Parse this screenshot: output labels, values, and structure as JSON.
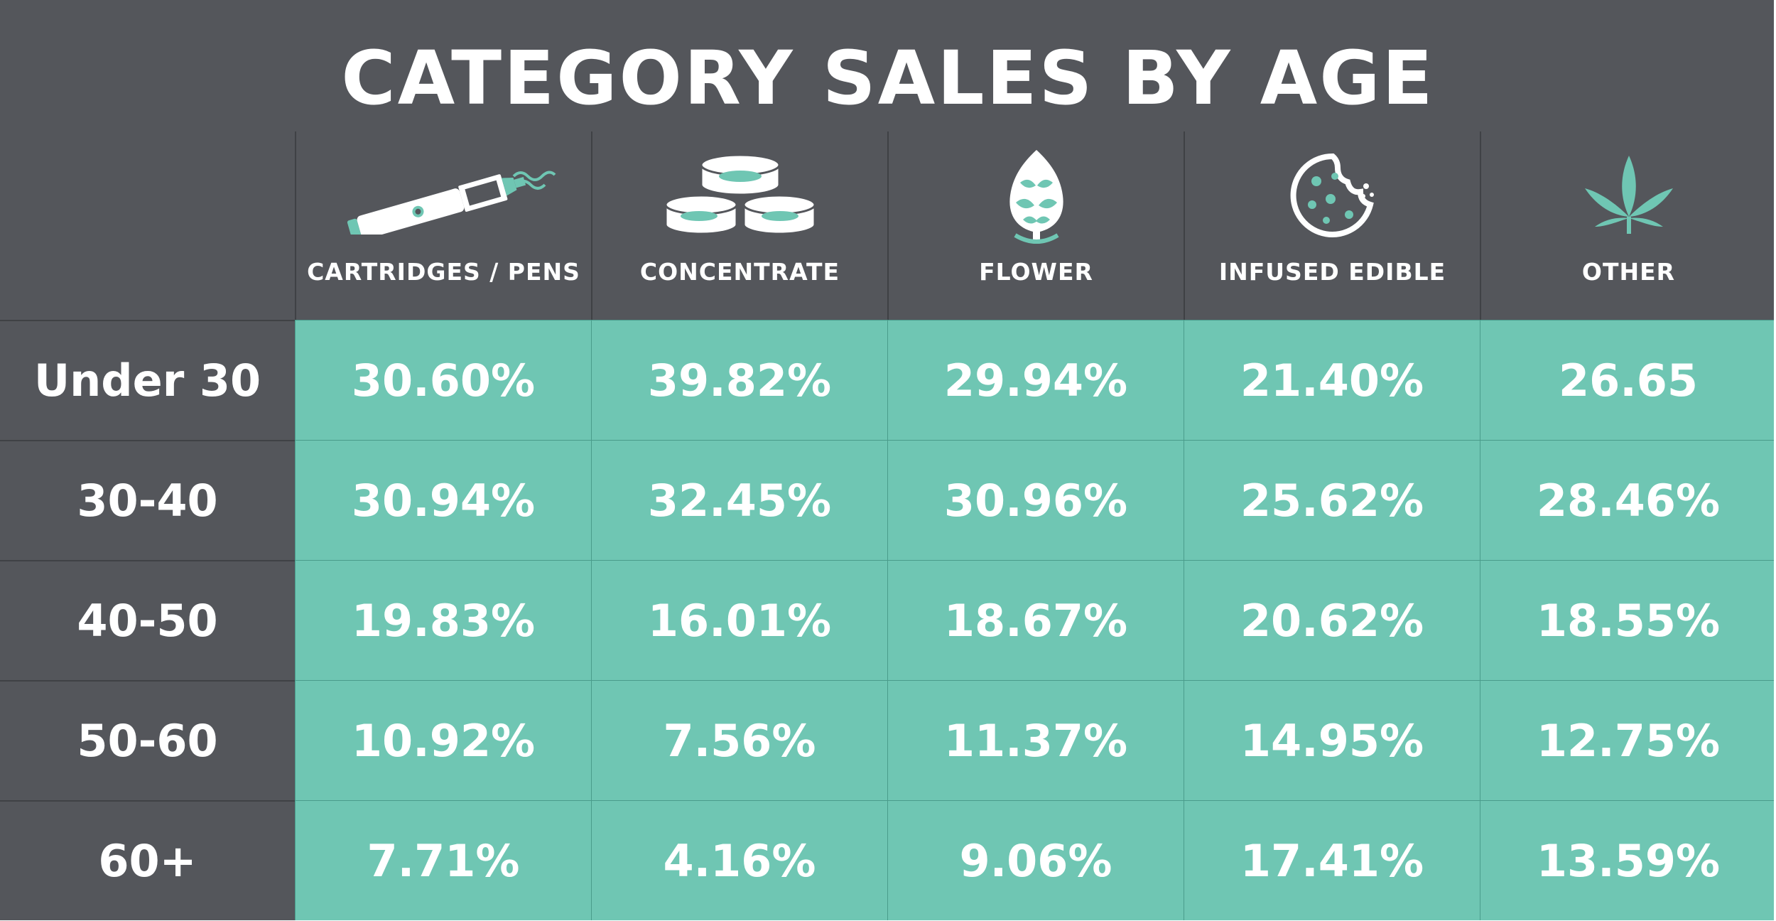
{
  "title": "CATEGORY SALES BY AGE",
  "colors": {
    "background": "#54565b",
    "cell": "#6fc6b3",
    "accent": "#6fc6b3",
    "text": "#ffffff"
  },
  "chart_data": {
    "type": "table",
    "title": "CATEGORY SALES BY AGE",
    "columns": [
      {
        "label": "CARTRIDGES / PENS",
        "icon": "vape-pen-icon"
      },
      {
        "label": "CONCENTRATE",
        "icon": "concentrate-jars-icon"
      },
      {
        "label": "FLOWER",
        "icon": "cannabis-bud-icon"
      },
      {
        "label": "INFUSED EDIBLE",
        "icon": "cookie-icon"
      },
      {
        "label": "OTHER",
        "icon": "cannabis-leaf-icon"
      }
    ],
    "rows": [
      {
        "label": "Under 30",
        "values": [
          "30.60%",
          "39.82%",
          "29.94%",
          "21.40%",
          "26.65"
        ]
      },
      {
        "label": "30-40",
        "values": [
          "30.94%",
          "32.45%",
          "30.96%",
          "25.62%",
          "28.46%"
        ]
      },
      {
        "label": "40-50",
        "values": [
          "19.83%",
          "16.01%",
          "18.67%",
          "20.62%",
          "18.55%"
        ]
      },
      {
        "label": "50-60",
        "values": [
          "10.92%",
          "7.56%",
          "11.37%",
          "14.95%",
          "12.75%"
        ]
      },
      {
        "label": "60+",
        "values": [
          "7.71%",
          "4.16%",
          "9.06%",
          "17.41%",
          "13.59%"
        ]
      }
    ]
  }
}
